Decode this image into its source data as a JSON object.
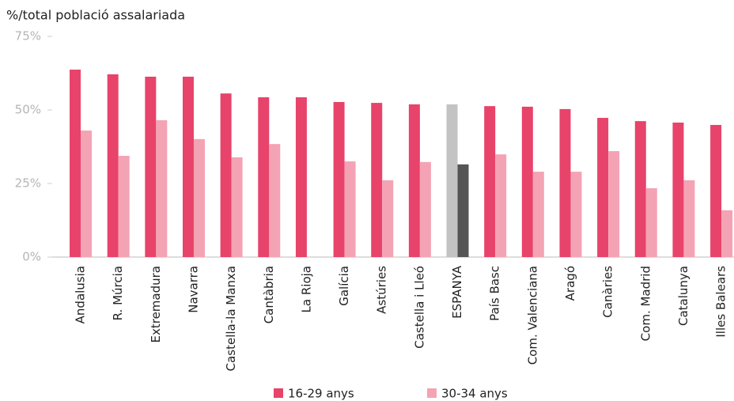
{
  "chart_data": {
    "type": "bar",
    "y_label": "%/total població assalariada",
    "categories": [
      "Andalusia",
      "R. Múrcia",
      "Extremadura",
      "Navarra",
      "Castella-la Manxa",
      "Cantàbria",
      "La Rioja",
      "Galícia",
      "Astúries",
      "Castella i Lleó",
      "ESPANYA",
      "País Basc",
      "Com. Valenciana",
      "Aragó",
      "Canàries",
      "Com. Madrid",
      "Catalunya",
      "Illes Balears"
    ],
    "series": [
      {
        "name": "16-29 anys",
        "color": "#e8436a",
        "values": [
          63.7,
          62.1,
          61.3,
          61.3,
          55.6,
          54.3,
          54.3,
          52.7,
          52.4,
          51.9,
          51.9,
          51.3,
          51.1,
          50.3,
          47.3,
          46.2,
          45.7,
          44.9
        ],
        "colors": [
          "#e8436a",
          "#e8436a",
          "#e8436a",
          "#e8436a",
          "#e8436a",
          "#e8436a",
          "#e8436a",
          "#e8436a",
          "#e8436a",
          "#e8436a",
          "#c3c3c3",
          "#e8436a",
          "#e8436a",
          "#e8436a",
          "#e8436a",
          "#e8436a",
          "#e8436a",
          "#e8436a"
        ]
      },
      {
        "name": "30-34 anys",
        "color": "#f4a3b4",
        "values": [
          43.0,
          34.4,
          46.5,
          40.1,
          33.9,
          38.4,
          null,
          32.5,
          26.1,
          32.3,
          31.5,
          34.9,
          29.0,
          29.0,
          36.0,
          23.4,
          26.1,
          15.9
        ],
        "colors": [
          "#f4a3b4",
          "#f4a3b4",
          "#f4a3b4",
          "#f4a3b4",
          "#f4a3b4",
          "#f4a3b4",
          "#f4a3b4",
          "#f4a3b4",
          "#f4a3b4",
          "#f4a3b4",
          "#555555",
          "#f4a3b4",
          "#f4a3b4",
          "#f4a3b4",
          "#f4a3b4",
          "#f4a3b4",
          "#f4a3b4",
          "#f4a3b4"
        ]
      }
    ],
    "ylim": [
      0,
      75
    ],
    "yticks": [
      {
        "value": 0,
        "label": "0%"
      },
      {
        "value": 25,
        "label": "25%"
      },
      {
        "value": 50,
        "label": "50%"
      },
      {
        "value": 75,
        "label": "75%"
      }
    ],
    "legend": "bottom"
  }
}
